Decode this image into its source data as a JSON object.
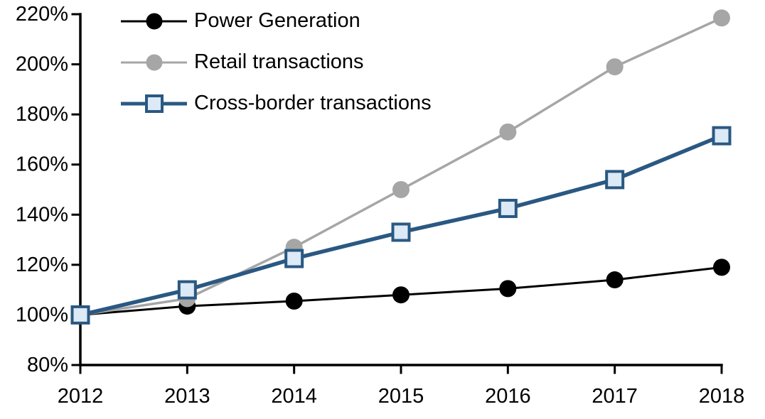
{
  "chart_data": {
    "type": "line",
    "title": "",
    "xlabel": "",
    "ylabel": "",
    "x_labels": [
      "2012",
      "2013",
      "2014",
      "2015",
      "2016",
      "2017",
      "2018"
    ],
    "series": [
      {
        "name": "Power Generation",
        "color": "#000000",
        "marker": "circle",
        "marker_fill": "#000000",
        "line_width": 3,
        "values": [
          100,
          103.5,
          105.5,
          108,
          110.5,
          114,
          119
        ]
      },
      {
        "name": "Retail transactions",
        "color": "#a6a6a6",
        "marker": "circle",
        "marker_fill": "#a6a6a6",
        "line_width": 3.5,
        "values": [
          100,
          106.5,
          127,
          150,
          173,
          199,
          218.5
        ]
      },
      {
        "name": "Cross-border transactions",
        "color": "#2a5882",
        "marker": "square",
        "marker_fill": "#dce9f6",
        "line_width": 5.5,
        "values": [
          100,
          110,
          122.5,
          133,
          142.5,
          154,
          171.5
        ]
      }
    ],
    "y_axis": {
      "min": 80,
      "max": 220,
      "tick_step": 20,
      "tick_labels": [
        "80%",
        "100%",
        "120%",
        "140%",
        "160%",
        "180%",
        "200%",
        "220%"
      ],
      "tick_suffix": "%"
    },
    "x_axis": {
      "min_label": "2012",
      "max_label": "2018"
    },
    "legend_position": "top-left",
    "grid": false,
    "axis_color": "#000000",
    "background_color": "#ffffff"
  }
}
